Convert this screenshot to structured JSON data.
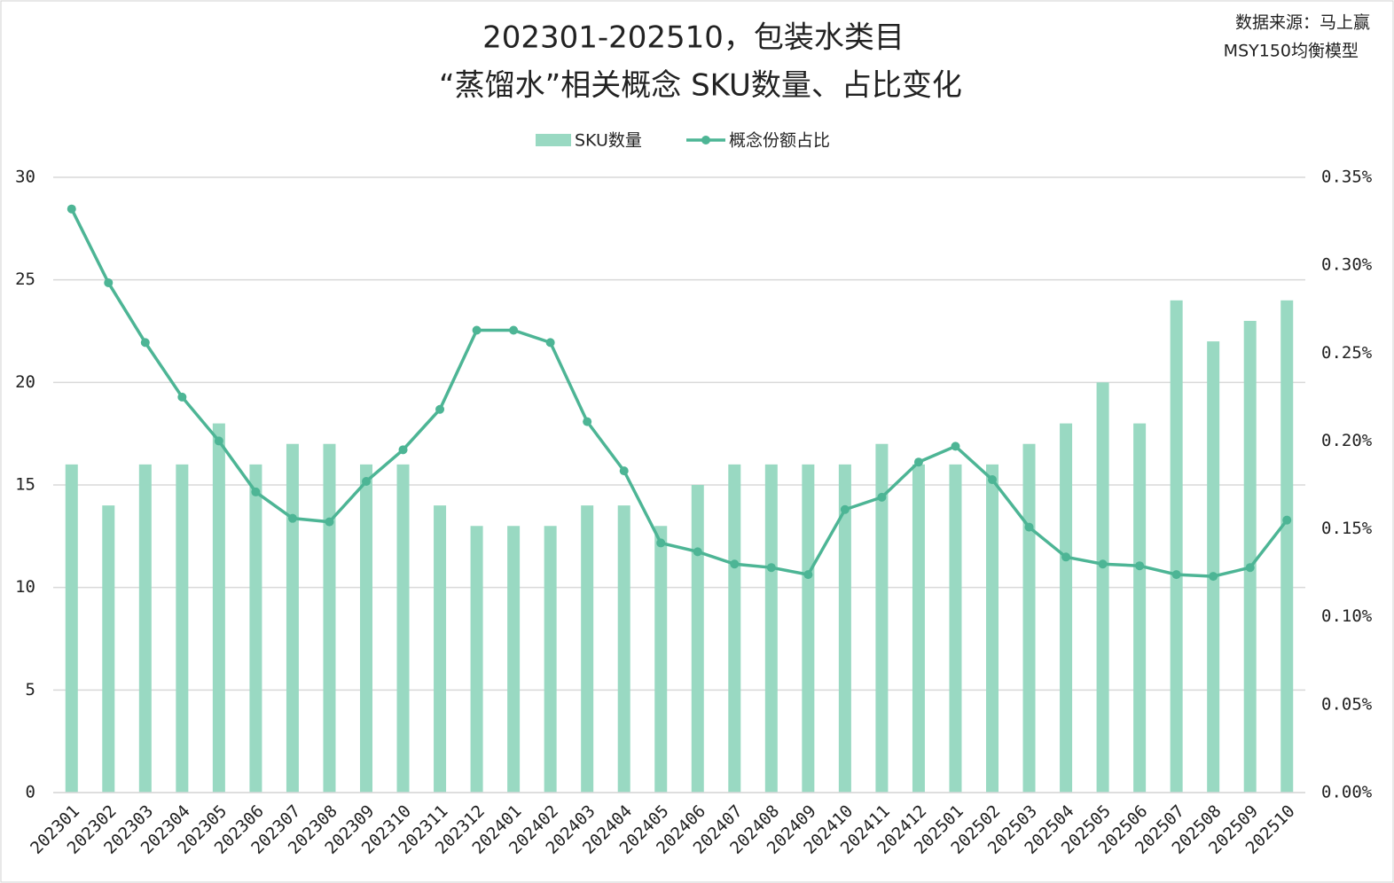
{
  "chart_data": {
    "type": "bar-line",
    "title": "202301-202510，包装水类目",
    "subtitle": "“蒸馏水”相关概念 SKU数量、占比变化",
    "source": [
      "数据来源：马上赢",
      "MSY150均衡模型"
    ],
    "categories": [
      "202301",
      "202302",
      "202303",
      "202304",
      "202305",
      "202306",
      "202307",
      "202308",
      "202309",
      "202310",
      "202311",
      "202312",
      "202401",
      "202402",
      "202403",
      "202404",
      "202405",
      "202406",
      "202407",
      "202408",
      "202409",
      "202410",
      "202411",
      "202412",
      "202501",
      "202502",
      "202503",
      "202504",
      "202505",
      "202506",
      "202507",
      "202508",
      "202509",
      "202510"
    ],
    "series": [
      {
        "name": "SKU数量",
        "type": "bar",
        "color": "#99d9c2",
        "values": [
          16,
          14,
          16,
          16,
          18,
          16,
          17,
          17,
          16,
          16,
          14,
          13,
          13,
          13,
          14,
          14,
          13,
          15,
          16,
          16,
          16,
          16,
          17,
          16,
          16,
          16,
          17,
          18,
          20,
          18,
          24,
          22,
          23,
          24
        ]
      },
      {
        "name": "概念份额占比",
        "type": "line",
        "axis": "y2",
        "color": "#4db595",
        "values": [
          0.332,
          0.29,
          0.256,
          0.225,
          0.2,
          0.171,
          0.156,
          0.154,
          0.177,
          0.195,
          0.218,
          0.263,
          0.263,
          0.256,
          0.211,
          0.183,
          0.142,
          0.137,
          0.13,
          0.128,
          0.124,
          0.161,
          0.168,
          0.188,
          0.197,
          0.178,
          0.151,
          0.134,
          0.13,
          0.129,
          0.124,
          0.123,
          0.128,
          0.155
        ]
      }
    ],
    "ylim": [
      0,
      30
    ],
    "yticks": [
      0,
      5,
      10,
      15,
      20,
      25,
      30
    ],
    "y2lim": [
      0,
      0.35
    ],
    "y2ticks": [
      {
        "value": 0,
        "label": "0.00%"
      },
      {
        "value": 0.05,
        "label": "0.05%"
      },
      {
        "value": 0.1,
        "label": "0.10%"
      },
      {
        "value": 0.15,
        "label": "0.15%"
      },
      {
        "value": 0.2,
        "label": "0.20%"
      },
      {
        "value": 0.25,
        "label": "0.25%"
      },
      {
        "value": 0.3,
        "label": "0.30%"
      },
      {
        "value": 0.35,
        "label": "0.35%"
      }
    ],
    "grid": true,
    "legend": "top"
  }
}
